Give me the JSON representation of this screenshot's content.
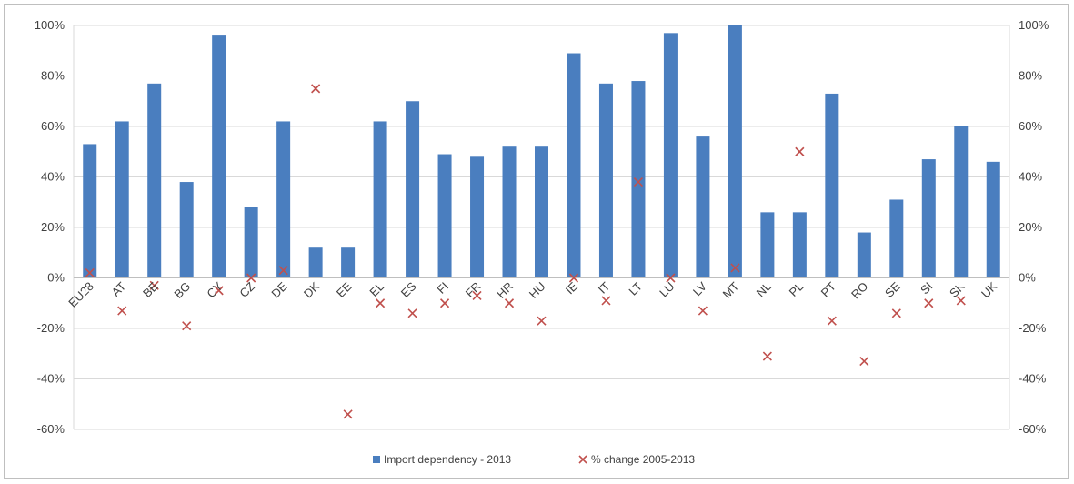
{
  "chart_data": {
    "type": "bar",
    "categories": [
      "EU28",
      "AT",
      "BE",
      "BG",
      "CY",
      "CZ",
      "DE",
      "DK",
      "EE",
      "EL",
      "ES",
      "FI",
      "FR",
      "HR",
      "HU",
      "IE",
      "IT",
      "LT",
      "LU",
      "LV",
      "MT",
      "NL",
      "PL",
      "PT",
      "RO",
      "SE",
      "SI",
      "SK",
      "UK"
    ],
    "series": [
      {
        "name": "Import dependency - 2013",
        "type": "bar",
        "color": "#4a7ebf",
        "values": [
          53,
          62,
          77,
          38,
          96,
          28,
          62,
          12,
          12,
          62,
          70,
          49,
          48,
          52,
          52,
          89,
          77,
          78,
          97,
          56,
          100,
          26,
          26,
          73,
          18,
          31,
          47,
          60,
          46
        ]
      },
      {
        "name": "% change 2005-2013",
        "type": "scatter",
        "marker": "x",
        "color": "#c0504d",
        "values": [
          2,
          -13,
          -3,
          -19,
          -5,
          0,
          3,
          75,
          -54,
          -10,
          -14,
          -10,
          -7,
          -10,
          -17,
          0,
          -9,
          38,
          0,
          -13,
          4,
          -31,
          50,
          -17,
          -33,
          -14,
          -10,
          -9,
          null
        ]
      }
    ],
    "y_left": {
      "ticks": [
        "100%",
        "80%",
        "60%",
        "40%",
        "20%",
        "0%",
        "-20%",
        "-40%",
        "-60%"
      ],
      "min": -60,
      "max": 100
    },
    "y_right": {
      "ticks": [
        "100%",
        "80%",
        "60%",
        "40%",
        "20%",
        "0%",
        "-20%",
        "-40%",
        "-60%"
      ],
      "min": -60,
      "max": 100
    },
    "grid": true,
    "legend_position": "bottom"
  }
}
